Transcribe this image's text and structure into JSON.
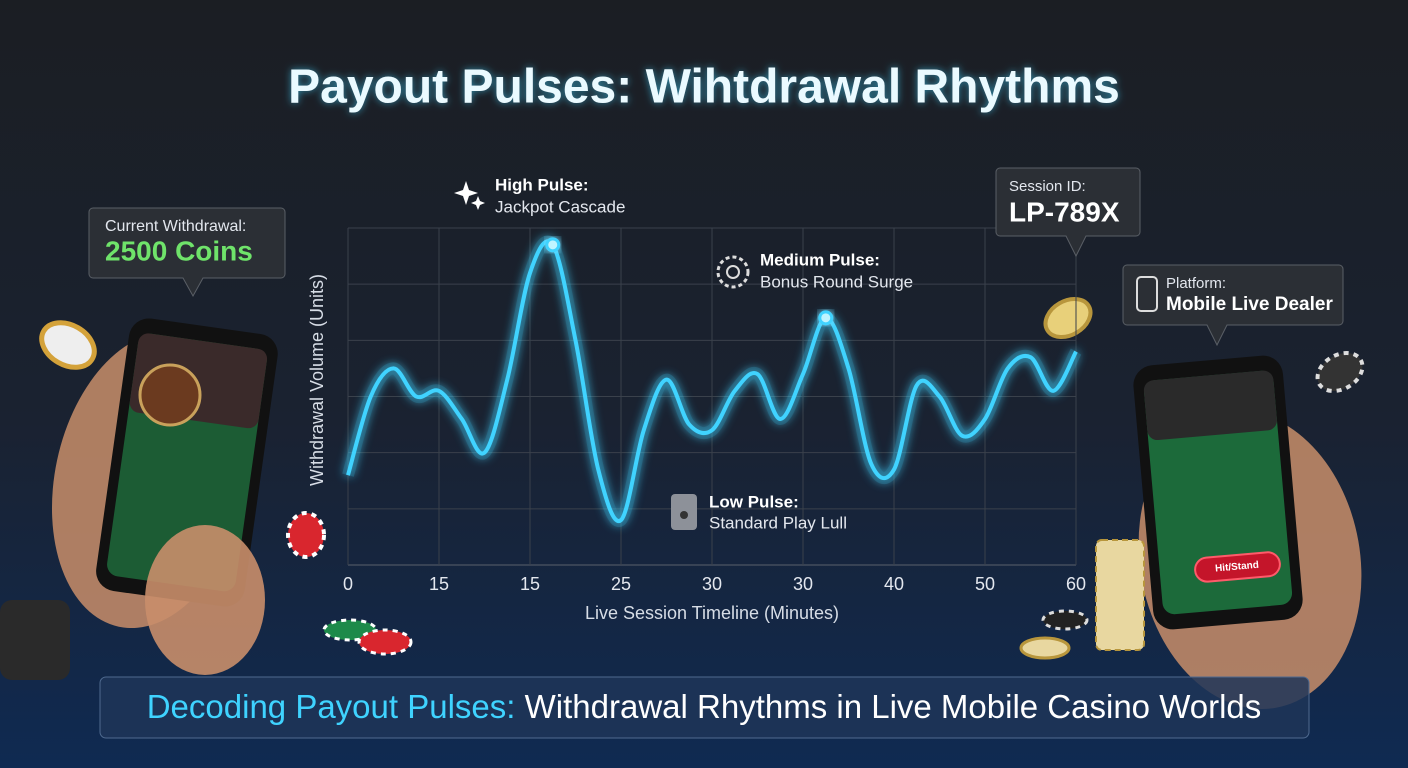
{
  "chart_data": {
    "type": "line",
    "title": "Payout Pulses: Wihtdrawal Rhythms",
    "xlabel": "Live Session Timeline (Minutes)",
    "ylabel": "Withdrawal Volume (Units)",
    "categories": [
      "0",
      null,
      null,
      null,
      "15",
      null,
      null,
      null,
      "15",
      null,
      null,
      null,
      "25",
      null,
      null,
      null,
      "30",
      null,
      null,
      null,
      "30",
      null,
      null,
      null,
      "40",
      null,
      null,
      null,
      "50",
      null,
      null,
      null,
      "60"
    ],
    "series": [
      {
        "name": "Withdrawal Volume",
        "color": "#3fd3ff",
        "values": [
          1.6,
          3.0,
          3.5,
          3.0,
          3.1,
          2.6,
          2.0,
          3.3,
          5.2,
          5.7,
          4.0,
          1.7,
          0.8,
          2.4,
          3.3,
          2.5,
          2.4,
          3.1,
          3.4,
          2.6,
          3.4,
          4.4,
          3.5,
          1.8,
          1.7,
          3.2,
          3.0,
          2.3,
          2.6,
          3.5,
          3.7,
          3.1,
          3.8
        ]
      }
    ],
    "ylim": [
      0,
      6
    ],
    "grid": true,
    "annotations": [
      {
        "title": "High Pulse:",
        "text": "Jackpot Cascade",
        "point": 9
      },
      {
        "title": "Medium Pulse:",
        "text": "Bonus Round Surge",
        "point": 21
      },
      {
        "title": "Low Pulse:",
        "text": "Standard Play Lull",
        "point": 12
      }
    ]
  },
  "callouts": [
    {
      "label": "Current Withdrawal:",
      "value": "2500 Coins"
    },
    {
      "label": "Session ID:",
      "value": "LP-789X"
    },
    {
      "label": "Platform:",
      "value": "Mobile Live Dealer"
    }
  ],
  "device_button": "Hit/Stand",
  "banner": {
    "highlight": "Decoding Payout Pulses:",
    "text": "Withdrawal Rhythms in Live Mobile Casino Worlds"
  }
}
